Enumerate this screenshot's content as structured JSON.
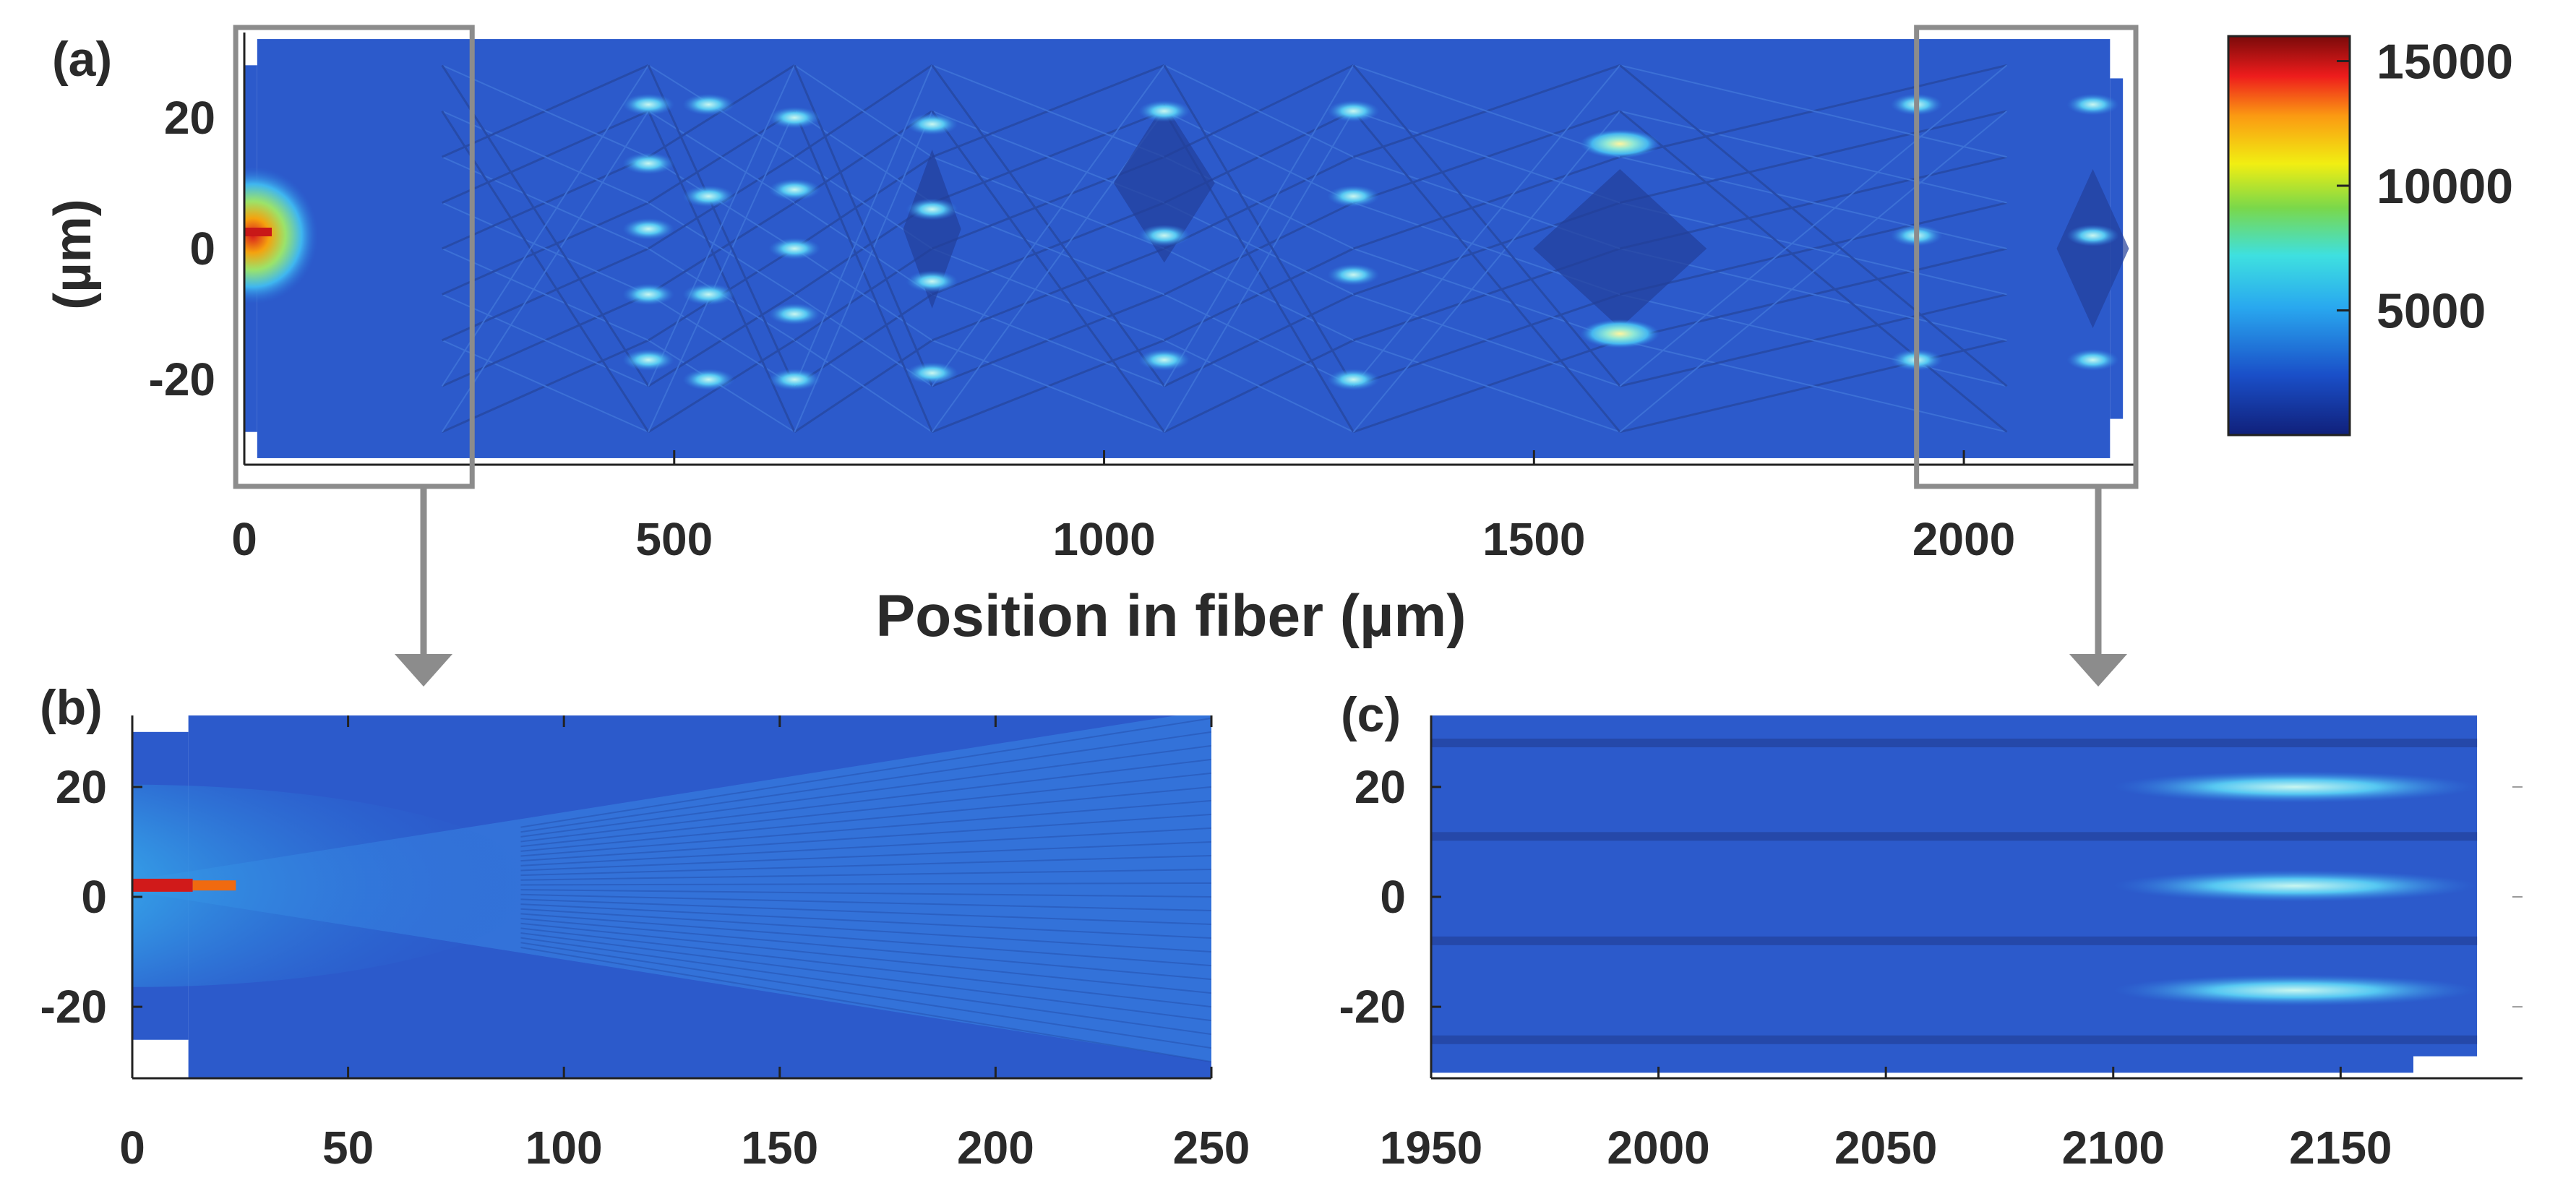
{
  "chart_data": [
    {
      "type": "heatmap",
      "panel_label": "(a)",
      "title": "",
      "xlabel": "Position in fiber (µm)",
      "ylabel": "(µm)",
      "xlim": [
        0,
        2200
      ],
      "ylim": [
        -33,
        33
      ],
      "x_ticks": [
        0,
        500,
        1000,
        1500,
        2000
      ],
      "y_ticks": [
        20,
        0,
        -20
      ],
      "fiber_core_half_width": 30,
      "fiber_step_positions": [
        15,
        2170
      ],
      "zoom_boxes": [
        {
          "links_to": "(b)",
          "x_range": [
            -10,
            265
          ]
        },
        {
          "links_to": "(c)",
          "x_range": [
            1945,
            2200
          ]
        }
      ],
      "colorbar": {
        "min": 0,
        "max": 16000,
        "ticks": [
          15000,
          10000,
          5000
        ],
        "colormap": [
          "#00008f",
          "#0040ff",
          "#00bfff",
          "#40ff80",
          "#ffff00",
          "#ff8000",
          "#ff0000",
          "#800000"
        ]
      }
    },
    {
      "type": "heatmap",
      "panel_label": "(b)",
      "xlabel": "",
      "ylabel": "",
      "xlim": [
        0,
        250
      ],
      "ylim": [
        -33,
        33
      ],
      "x_ticks": [
        0,
        50,
        100,
        150,
        200,
        250
      ],
      "y_ticks": [
        20,
        0,
        -20
      ]
    },
    {
      "type": "heatmap",
      "panel_label": "(c)",
      "xlabel": "",
      "ylabel": "",
      "xlim": [
        1950,
        2190
      ],
      "ylim": [
        -33,
        33
      ],
      "x_ticks": [
        1950,
        2000,
        2050,
        2100,
        2150
      ],
      "y_ticks": [
        20,
        0,
        -20
      ]
    }
  ]
}
